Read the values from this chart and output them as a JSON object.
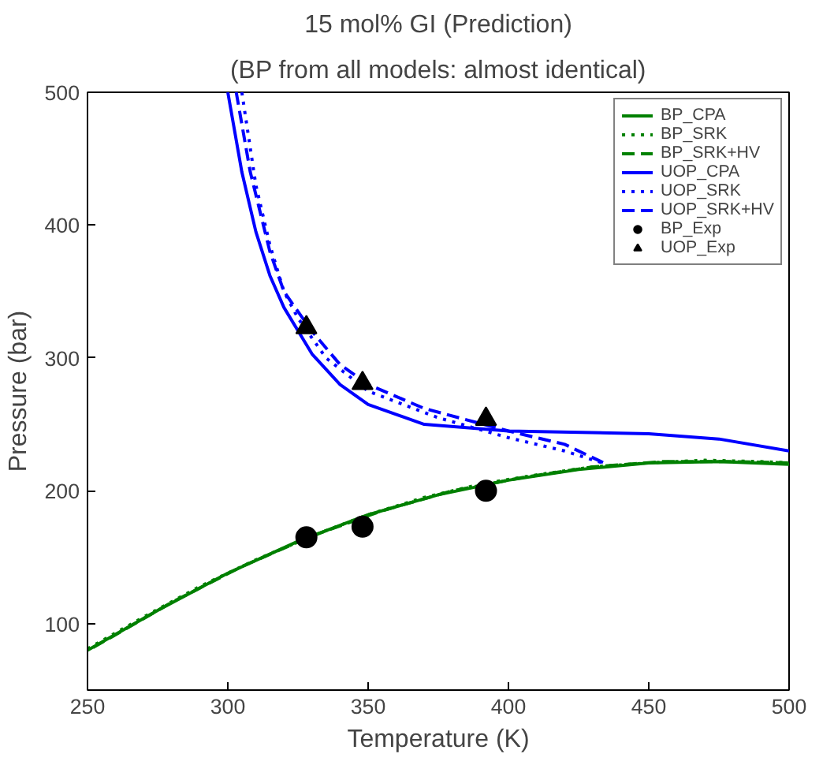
{
  "chart_data": {
    "type": "line",
    "title": "15 mol% GI (Prediction)",
    "subtitle": "(BP from all models: almost identical)",
    "xlabel": "Temperature (K)",
    "ylabel": "Pressure (bar)",
    "xlim": [
      250,
      500
    ],
    "xticks": [
      250,
      300,
      350,
      400,
      450,
      500
    ],
    "ylim": [
      50,
      500
    ],
    "yticks": [
      100,
      200,
      300,
      400,
      500
    ],
    "grid": false,
    "legend": "top right",
    "series": [
      {
        "name": "BP_CPA",
        "color": "#008000",
        "line_style": "solid",
        "x": [
          250,
          275,
          300,
          325,
          350,
          375,
          400,
          425,
          450,
          475,
          500
        ],
        "values": [
          80,
          110,
          138,
          162,
          182,
          197,
          208,
          216,
          221,
          222,
          220
        ]
      },
      {
        "name": "BP_SRK",
        "color": "#008000",
        "line_style": "dotted",
        "x": [
          250,
          270,
          290,
          310,
          330,
          350,
          370,
          390,
          410,
          430,
          450,
          470,
          490,
          500
        ],
        "values": [
          81,
          105,
          128,
          148,
          166,
          182,
          195,
          205,
          212,
          218,
          221,
          223,
          222,
          221
        ]
      },
      {
        "name": "BP_SRK+HV",
        "color": "#008000",
        "line_style": "dashed",
        "x": [
          252,
          280,
          305,
          330,
          355,
          380,
          405,
          430,
          455,
          480,
          500
        ],
        "values": [
          82,
          116,
          143,
          166,
          185,
          200,
          210,
          218,
          222,
          222,
          221
        ]
      },
      {
        "name": "UOP_CPA",
        "color": "#0000ff",
        "line_style": "solid",
        "x": [
          300,
          305,
          310,
          315,
          320,
          330,
          340,
          350,
          370,
          400,
          450,
          475,
          500
        ],
        "values": [
          500,
          440,
          395,
          362,
          338,
          303,
          280,
          265,
          250,
          245,
          243,
          239,
          230
        ]
      },
      {
        "name": "UOP_SRK",
        "color": "#0000ff",
        "line_style": "dotted",
        "x": [
          305,
          310,
          315,
          320,
          325,
          335,
          350,
          375,
          400,
          420,
          435
        ],
        "values": [
          500,
          430,
          385,
          350,
          330,
          300,
          275,
          255,
          240,
          230,
          220
        ]
      },
      {
        "name": "UOP_SRK+HV",
        "color": "#0000ff",
        "line_style": "dashed",
        "x": [
          303,
          308,
          315,
          320,
          330,
          340,
          350,
          370,
          400,
          420,
          435
        ],
        "values": [
          500,
          440,
          380,
          350,
          320,
          295,
          280,
          262,
          245,
          235,
          220
        ]
      },
      {
        "name": "BP_Exp",
        "type": "scatter",
        "marker": "circle",
        "color": "#000000",
        "x": [
          328,
          348,
          392
        ],
        "values": [
          165,
          173,
          200
        ]
      },
      {
        "name": "UOP_Exp",
        "type": "scatter",
        "marker": "triangle",
        "color": "#000000",
        "x": [
          328,
          348,
          392
        ],
        "values": [
          323,
          281,
          254
        ]
      }
    ]
  }
}
